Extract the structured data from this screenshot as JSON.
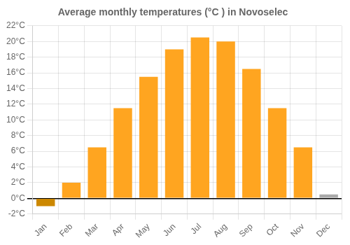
{
  "chart_data": {
    "type": "bar",
    "title": "Average monthly temperatures (°C ) in Novoselec",
    "categories": [
      "Jan",
      "Feb",
      "Mar",
      "Apr",
      "May",
      "Jun",
      "Jul",
      "Aug",
      "Sep",
      "Oct",
      "Nov",
      "Dec"
    ],
    "values": [
      -1.0,
      2.0,
      6.5,
      11.5,
      15.5,
      19.0,
      20.5,
      20.0,
      16.5,
      11.5,
      6.5,
      0.5
    ],
    "colors": [
      "#CC8800",
      "#FFA520",
      "#FFA520",
      "#FFA520",
      "#FFA520",
      "#FFA520",
      "#FFA520",
      "#FFA520",
      "#FFA520",
      "#FFA520",
      "#FFA520",
      "#AAAAAA"
    ],
    "ylim": [
      -2,
      22
    ],
    "yticks": [
      {
        "value": -2,
        "label": "-2°C"
      },
      {
        "value": 0,
        "label": "0°C"
      },
      {
        "value": 2,
        "label": "2°C"
      },
      {
        "value": 4,
        "label": "4°C"
      },
      {
        "value": 6,
        "label": "6°C"
      },
      {
        "value": 8,
        "label": "8°C"
      },
      {
        "value": 10,
        "label": "10°C"
      },
      {
        "value": 12,
        "label": "12°C"
      },
      {
        "value": 14,
        "label": "14°C"
      },
      {
        "value": 16,
        "label": "16°C"
      },
      {
        "value": 18,
        "label": "18°C"
      },
      {
        "value": 20,
        "label": "20°C"
      },
      {
        "value": 22,
        "label": "22°C"
      }
    ],
    "grid": true
  }
}
